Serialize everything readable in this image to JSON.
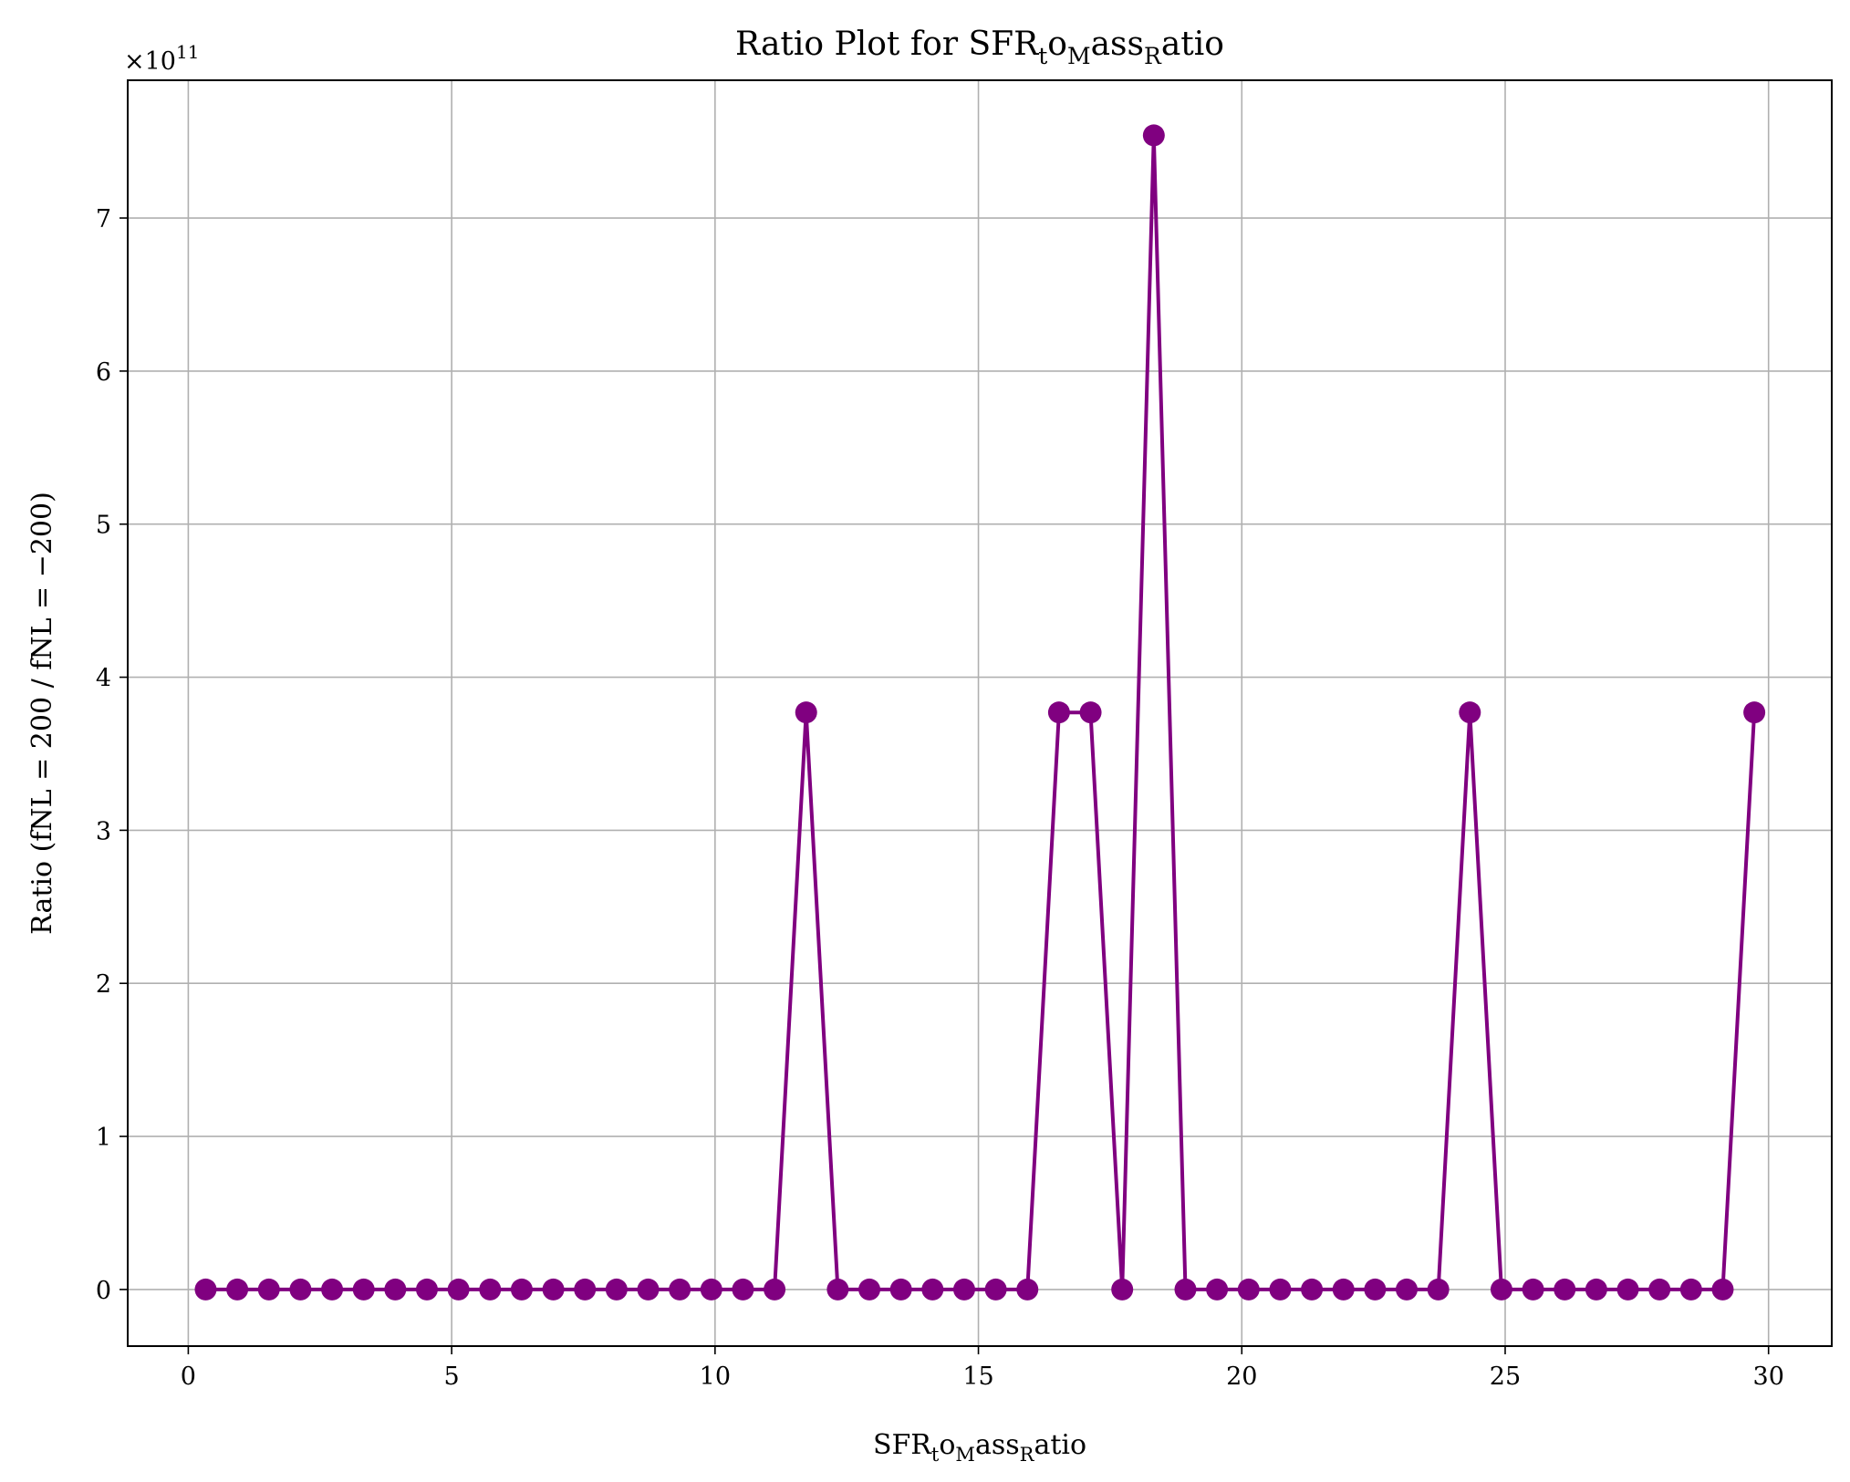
{
  "chart_data": {
    "type": "line",
    "title": {
      "main": "Ratio Plot for SFR",
      "s1": "t",
      "m1": "o",
      "s2": "M",
      "m2": "ass",
      "s3": "R",
      "m3": "atio"
    },
    "xlabel": {
      "main": "SFR",
      "s1": "t",
      "m1": "o",
      "s2": "M",
      "m2": "ass",
      "s3": "R",
      "m3": "atio"
    },
    "ylabel": "Ratio (fNL = 200 / fNL = −200)",
    "offset_label": {
      "base": "×10",
      "exp": "11"
    },
    "xlim": [
      -1.15,
      31.2
    ],
    "ylim": [
      -0.37,
      7.9
    ],
    "xticks": [
      0,
      5,
      10,
      15,
      20,
      25,
      30
    ],
    "xtick_labels": [
      "0",
      "5",
      "10",
      "15",
      "20",
      "25",
      "30"
    ],
    "yticks": [
      0,
      1,
      2,
      3,
      4,
      5,
      6,
      7
    ],
    "ytick_labels": [
      "0",
      "1",
      "2",
      "3",
      "4",
      "5",
      "6",
      "7"
    ],
    "grid": true,
    "line_color": "#800080",
    "series": [
      {
        "x": [
          0.33,
          0.93,
          1.53,
          2.13,
          2.73,
          3.33,
          3.93,
          4.53,
          5.13,
          5.73,
          6.33,
          6.93,
          7.53,
          8.13,
          8.73,
          9.33,
          9.93,
          10.53,
          11.13,
          11.73,
          12.33,
          12.93,
          13.53,
          14.13,
          14.73,
          15.33,
          15.93,
          16.53,
          17.13,
          17.73,
          18.33,
          18.93,
          19.53,
          20.13,
          20.73,
          21.33,
          21.93,
          22.53,
          23.13,
          23.73,
          24.33,
          24.93,
          25.53,
          26.13,
          26.73,
          27.33,
          27.93,
          28.53,
          29.13,
          29.73
        ],
        "y": [
          0,
          0,
          0,
          0,
          0,
          0,
          0,
          0,
          0,
          0,
          0,
          0,
          0,
          0,
          0,
          0,
          0,
          0,
          0,
          3.77,
          0,
          0,
          0,
          0,
          0,
          0,
          0,
          3.77,
          3.77,
          0,
          7.54,
          0,
          0,
          0,
          0,
          0,
          0,
          0,
          0,
          0,
          3.77,
          0,
          0,
          0,
          0,
          0,
          0,
          0,
          0,
          3.77
        ]
      }
    ]
  }
}
